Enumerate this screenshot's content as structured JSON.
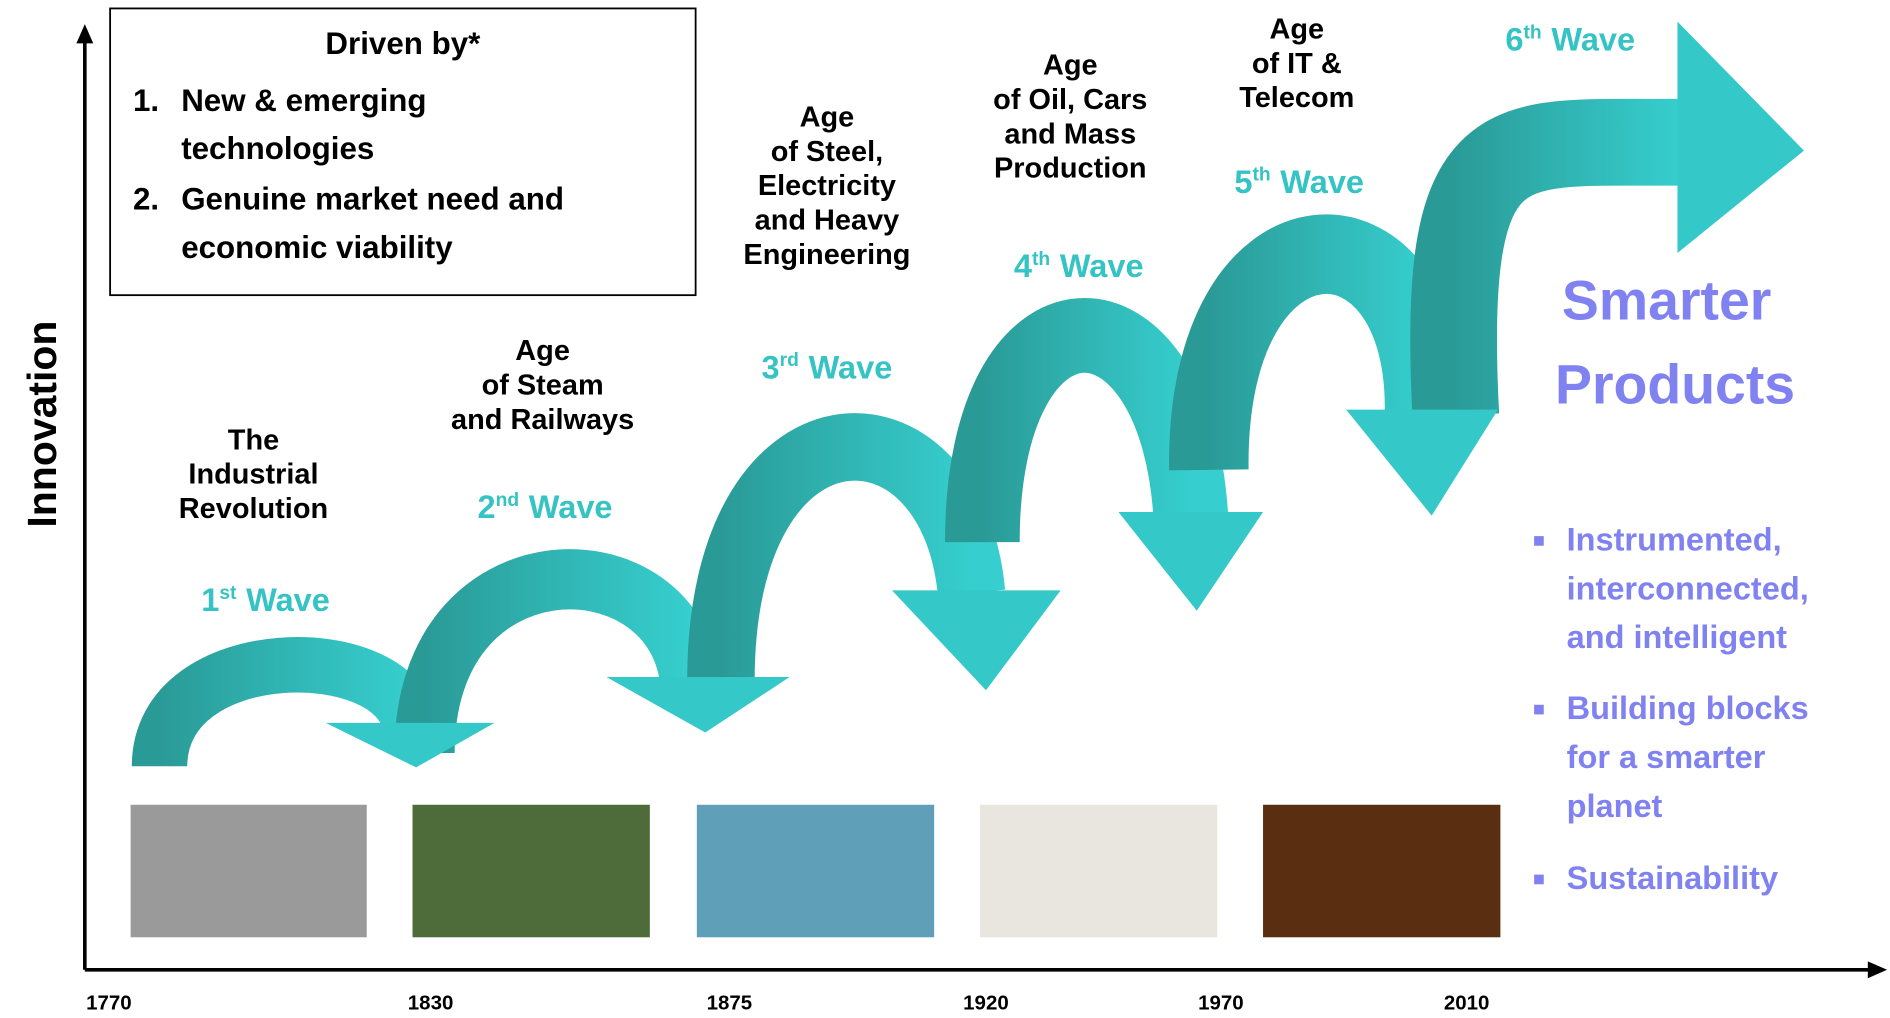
{
  "axis": {
    "y_label": "Innovation",
    "x_labels": [
      "1770",
      "1830",
      "1875",
      "1920",
      "1970",
      "2010"
    ]
  },
  "driven_box": {
    "title": "Driven by*",
    "items": [
      {
        "number": "1.",
        "lines": [
          "New & emerging",
          "technologies"
        ]
      },
      {
        "number": "2.",
        "lines": [
          "Genuine market need and",
          "economic viability"
        ]
      }
    ]
  },
  "waves": [
    {
      "number": "1",
      "suffix": "st",
      "word": "Wave",
      "age": [
        "The",
        "Industrial",
        "Revolution"
      ]
    },
    {
      "number": "2",
      "suffix": "nd",
      "word": "Wave",
      "age": [
        "Age",
        "of Steam",
        "and Railways"
      ]
    },
    {
      "number": "3",
      "suffix": "rd",
      "word": "Wave",
      "age": [
        "Age",
        "of Steel,",
        "Electricity",
        "and Heavy",
        "Engineering"
      ]
    },
    {
      "number": "4",
      "suffix": "th",
      "word": "Wave",
      "age": [
        "Age",
        "of Oil, Cars",
        "and Mass",
        "Production"
      ]
    },
    {
      "number": "5",
      "suffix": "th",
      "word": "Wave",
      "age": [
        "Age",
        "of IT &",
        "Telecom"
      ]
    },
    {
      "number": "6",
      "suffix": "th",
      "word": "Wave"
    }
  ],
  "smarter": {
    "title": [
      "Smarter",
      "Products"
    ],
    "bullets": [
      [
        "Instrumented,",
        "interconnected,",
        "and intelligent"
      ],
      [
        "Building blocks",
        "for a smarter",
        "planet"
      ],
      [
        "Sustainability"
      ]
    ]
  }
}
